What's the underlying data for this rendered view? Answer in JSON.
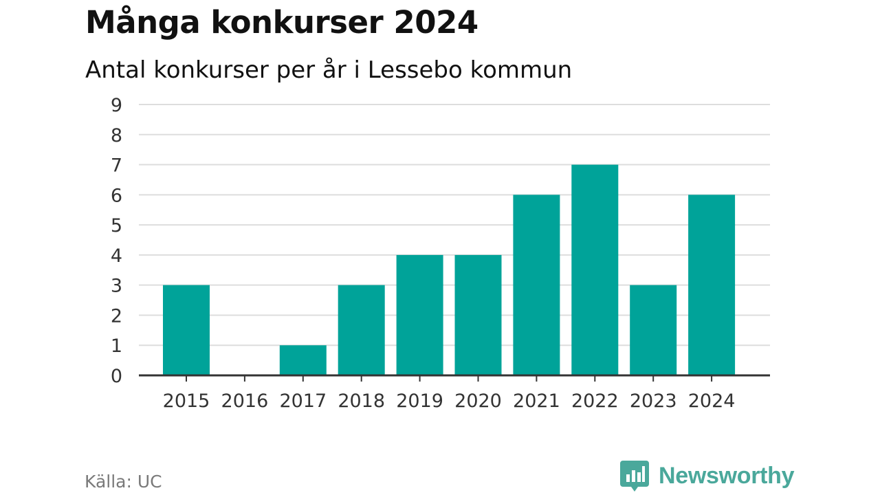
{
  "chart_data": {
    "type": "bar",
    "title": "Många konkurser 2024",
    "subtitle": "Antal konkurser per år i Lessebo kommun",
    "categories": [
      "2015",
      "2016",
      "2017",
      "2018",
      "2019",
      "2020",
      "2021",
      "2022",
      "2023",
      "2024"
    ],
    "values": [
      3,
      0,
      1,
      3,
      4,
      4,
      6,
      7,
      3,
      6
    ],
    "ylim": [
      0,
      9
    ],
    "yticks": [
      0,
      1,
      2,
      3,
      4,
      5,
      6,
      7,
      8,
      9
    ],
    "grid": true,
    "bar_color": "#00a399"
  },
  "footer": {
    "source": "Källa: UC",
    "brand": "Newsworthy"
  },
  "colors": {
    "brand": "#4aa89b",
    "gridline": "#dddddd",
    "axis": "#333333"
  }
}
